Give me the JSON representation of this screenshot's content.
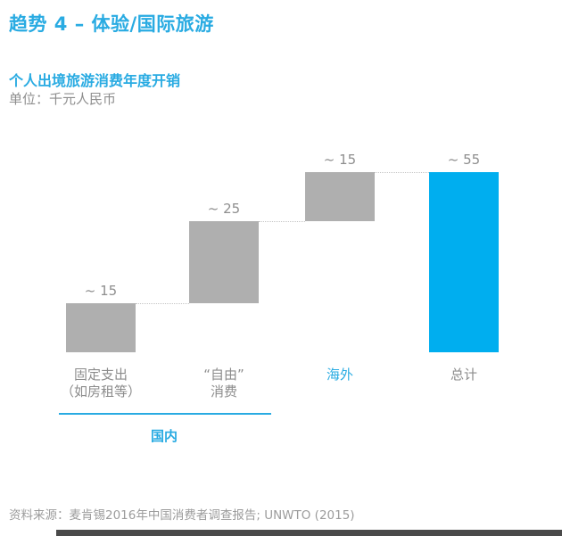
{
  "page": {
    "title": "趋势 4 – 体验/国际旅游",
    "source": "资料来源：麦肯锡2016年中国消费者调查报告; UNWTO (2015)"
  },
  "colors": {
    "accent_blue": "#29ABE2",
    "bar_blue": "#00AEEF",
    "bar_gray": "#AFAFAF",
    "text_gray": "#8C8C8C",
    "source_gray": "#9C9C9C",
    "connector_gray": "#C4C4C4",
    "footer_dark": "#4A4A4A"
  },
  "chart_data": {
    "type": "bar",
    "subtype": "waterfall",
    "title": "个人出境旅游消费年度开销",
    "unit_label": "单位：千元人民币",
    "unit": "千元人民币",
    "ylabel": "",
    "xlabel": "",
    "ylim": [
      0,
      55
    ],
    "grid": false,
    "legend": false,
    "categories": [
      "固定支出（如房租等）",
      "“自由”消费",
      "海外",
      "总计"
    ],
    "values": [
      15,
      25,
      15,
      55
    ],
    "value_labels": [
      "~ 15",
      "~ 25",
      "~ 15",
      "~ 55"
    ],
    "cumulative_base": [
      0,
      15,
      40,
      0
    ],
    "columns": [
      {
        "label_lines": [
          "固定支出",
          "（如房租等）"
        ],
        "value": 15,
        "base": 0,
        "value_label": "~ 15",
        "role": "component",
        "accent_label": false
      },
      {
        "label_lines": [
          "“自由”",
          "消费"
        ],
        "value": 25,
        "base": 15,
        "value_label": "~ 25",
        "role": "component",
        "accent_label": false
      },
      {
        "label_lines": [
          "海外"
        ],
        "value": 15,
        "base": 40,
        "value_label": "~ 15",
        "role": "component",
        "accent_label": true
      },
      {
        "label_lines": [
          "总计"
        ],
        "value": 55,
        "base": 0,
        "value_label": "~ 55",
        "role": "total",
        "accent_label": false
      }
    ],
    "group": {
      "label": "国内",
      "covers_columns": [
        0,
        1
      ]
    }
  }
}
